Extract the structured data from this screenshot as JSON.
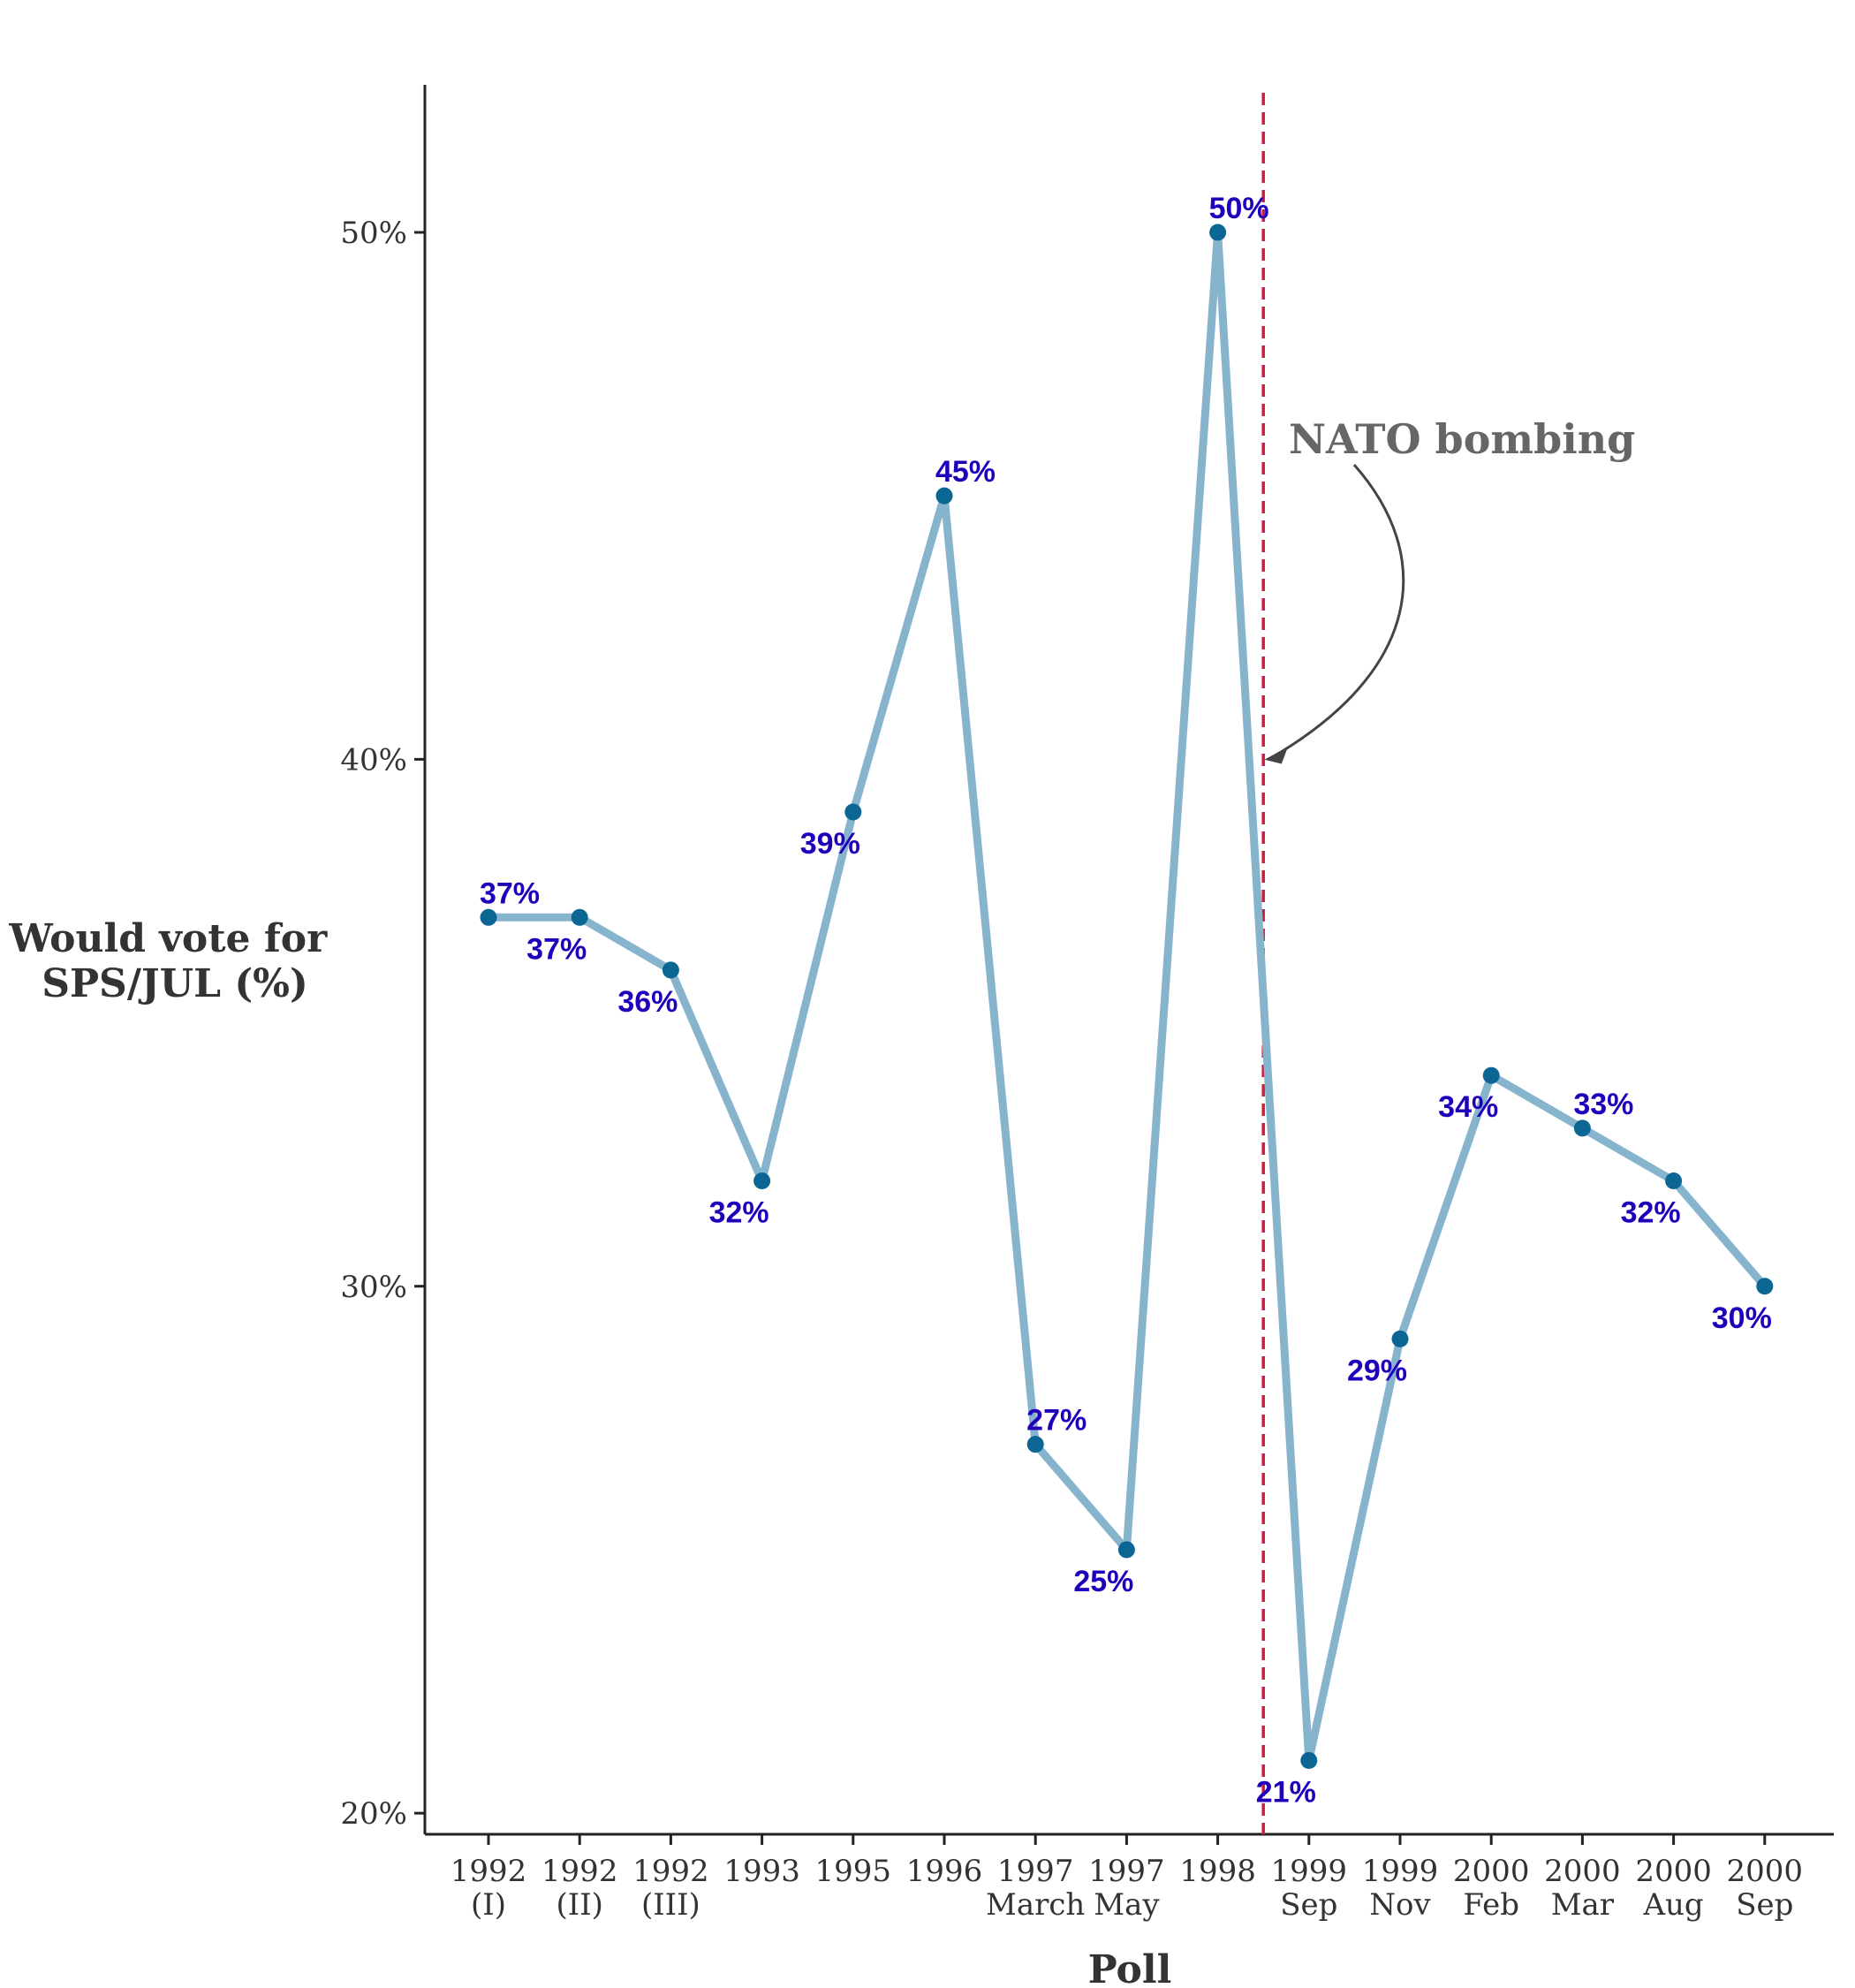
{
  "chart_data": {
    "type": "line",
    "xlabel": "Poll",
    "ylabel_lines": [
      "Would vote for",
      "SPS/JUL (%)"
    ],
    "ylim": [
      19.6,
      52.8
    ],
    "yticks": [
      20,
      30,
      40,
      50
    ],
    "ytick_labels": [
      "20%",
      "30%",
      "40%",
      "50%"
    ],
    "grid": false,
    "categories": [
      [
        "1992",
        "(I)"
      ],
      [
        "1992",
        "(II)"
      ],
      [
        "1992",
        "(III)"
      ],
      [
        "1993",
        ""
      ],
      [
        "1995",
        ""
      ],
      [
        "1996",
        ""
      ],
      [
        "1997",
        "March"
      ],
      [
        "1997",
        "May"
      ],
      [
        "1998",
        ""
      ],
      [
        "1999",
        "Sep"
      ],
      [
        "1999",
        "Nov"
      ],
      [
        "2000",
        "Feb"
      ],
      [
        "2000",
        "Mar"
      ],
      [
        "2000",
        "Aug"
      ],
      [
        "2000",
        "Sep"
      ]
    ],
    "values": [
      37,
      37,
      36,
      32,
      39,
      45,
      27,
      25,
      50,
      21,
      29,
      34,
      33,
      32,
      30
    ],
    "data_labels": [
      "37%",
      "37%",
      "36%",
      "32%",
      "39%",
      "45%",
      "27%",
      "25%",
      "50%",
      "21%",
      "29%",
      "34%",
      "33%",
      "32%",
      "30%"
    ],
    "label_below": [
      false,
      true,
      true,
      true,
      true,
      false,
      false,
      true,
      false,
      true,
      true,
      true,
      false,
      true,
      true
    ],
    "annotation": {
      "text": "NATO bombing",
      "x_between": [
        8,
        9
      ],
      "arrow_y": 40
    },
    "colors": {
      "line": "#86b4cc",
      "point": "#0b6694",
      "label": "#2200bb",
      "vline": "#d01c3c",
      "annotation": "#666666",
      "arrow": "#444444",
      "axis": "#222222",
      "text": "#333333"
    }
  }
}
